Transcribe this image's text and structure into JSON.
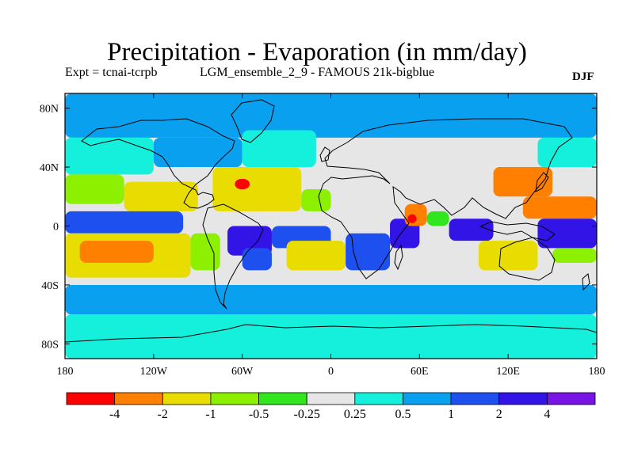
{
  "chart_data": {
    "type": "heatmap",
    "title": "Precipitation - Evaporation (in mm/day)",
    "experiment_label": "Expt = tcnai-tcrpb",
    "run_label": "LGM_ensemble_2_9 - FAMOUS 21k-bigblue",
    "season": "DJF",
    "x_axis": {
      "range": [
        -180,
        180
      ],
      "ticks": [
        "180",
        "120W",
        "60W",
        "0",
        "60E",
        "120E",
        "180"
      ],
      "tick_values": [
        -180,
        -120,
        -60,
        0,
        60,
        120,
        180
      ]
    },
    "y_axis": {
      "range": [
        -90,
        90
      ],
      "ticks": [
        "80N",
        "40N",
        "0",
        "40S",
        "80S"
      ],
      "tick_values": [
        80,
        40,
        0,
        -40,
        -80
      ]
    },
    "colorbar": {
      "boundary_labels": [
        "-4",
        "-2",
        "-1",
        "-0.5",
        "-0.25",
        "0.25",
        "0.5",
        "1",
        "2",
        "4"
      ],
      "colors": [
        "#ff0000",
        "#ff7f00",
        "#e8dc00",
        "#8cf000",
        "#32e61e",
        "#e6e6e6",
        "#14f0dc",
        "#0aa0f0",
        "#1e50f0",
        "#3214e6",
        "#7814e6"
      ]
    },
    "field_regions": [
      {
        "lon": [
          -180,
          180
        ],
        "lat": [
          60,
          90
        ],
        "level": 7
      },
      {
        "lon": [
          -180,
          180
        ],
        "lat": [
          -90,
          -60
        ],
        "level": 6
      },
      {
        "lon": [
          -180,
          180
        ],
        "lat": [
          -60,
          -40
        ],
        "level": 7
      },
      {
        "lon": [
          -180,
          -120
        ],
        "lat": [
          35,
          60
        ],
        "level": 6
      },
      {
        "lon": [
          -120,
          -60
        ],
        "lat": [
          40,
          60
        ],
        "level": 7
      },
      {
        "lon": [
          -60,
          -10
        ],
        "lat": [
          40,
          65
        ],
        "level": 6
      },
      {
        "lon": [
          140,
          180
        ],
        "lat": [
          40,
          60
        ],
        "level": 6
      },
      {
        "lon": [
          -180,
          -140
        ],
        "lat": [
          15,
          35
        ],
        "level": 3
      },
      {
        "lon": [
          -140,
          -90
        ],
        "lat": [
          10,
          30
        ],
        "level": 2
      },
      {
        "lon": [
          -80,
          -20
        ],
        "lat": [
          10,
          40
        ],
        "level": 2
      },
      {
        "lon": [
          -65,
          -55
        ],
        "lat": [
          25,
          32
        ],
        "level": 0
      },
      {
        "lon": [
          -20,
          0
        ],
        "lat": [
          10,
          25
        ],
        "level": 3
      },
      {
        "lon": [
          -180,
          -100
        ],
        "lat": [
          -5,
          10
        ],
        "level": 8
      },
      {
        "lon": [
          -40,
          0
        ],
        "lat": [
          -15,
          0
        ],
        "level": 8
      },
      {
        "lon": [
          -180,
          -95
        ],
        "lat": [
          -35,
          -5
        ],
        "level": 2
      },
      {
        "lon": [
          -170,
          -120
        ],
        "lat": [
          -25,
          -10
        ],
        "level": 1
      },
      {
        "lon": [
          -95,
          -75
        ],
        "lat": [
          -30,
          -5
        ],
        "level": 3
      },
      {
        "lon": [
          -70,
          -40
        ],
        "lat": [
          -20,
          0
        ],
        "level": 9
      },
      {
        "lon": [
          -60,
          -40
        ],
        "lat": [
          -30,
          -15
        ],
        "level": 8
      },
      {
        "lon": [
          -30,
          10
        ],
        "lat": [
          -30,
          -10
        ],
        "level": 2
      },
      {
        "lon": [
          10,
          40
        ],
        "lat": [
          -30,
          -5
        ],
        "level": 8
      },
      {
        "lon": [
          40,
          60
        ],
        "lat": [
          -15,
          5
        ],
        "level": 9
      },
      {
        "lon": [
          50,
          65
        ],
        "lat": [
          0,
          15
        ],
        "level": 1
      },
      {
        "lon": [
          52,
          58
        ],
        "lat": [
          2,
          8
        ],
        "level": 0
      },
      {
        "lon": [
          65,
          80
        ],
        "lat": [
          0,
          10
        ],
        "level": 4
      },
      {
        "lon": [
          80,
          110
        ],
        "lat": [
          -10,
          5
        ],
        "level": 9
      },
      {
        "lon": [
          100,
          140
        ],
        "lat": [
          -30,
          -10
        ],
        "level": 2
      },
      {
        "lon": [
          110,
          150
        ],
        "lat": [
          20,
          40
        ],
        "level": 1
      },
      {
        "lon": [
          130,
          180
        ],
        "lat": [
          5,
          20
        ],
        "level": 1
      },
      {
        "lon": [
          140,
          180
        ],
        "lat": [
          -15,
          5
        ],
        "level": 9
      },
      {
        "lon": [
          150,
          180
        ],
        "lat": [
          -25,
          -15
        ],
        "level": 3
      }
    ]
  }
}
